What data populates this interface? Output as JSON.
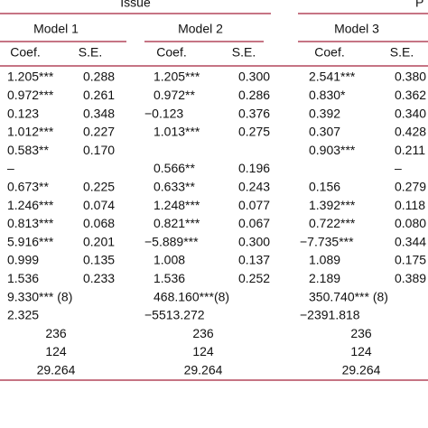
{
  "header": {
    "groups": [
      "Issue",
      "P"
    ],
    "models": [
      "Model 1",
      "Model 2",
      "Model 3"
    ],
    "columns": [
      "Coef.",
      "S.E.",
      "Coef.",
      "S.E.",
      "Coef.",
      "S.E."
    ]
  },
  "table": {
    "rows": [
      [
        "1.205***",
        "0.288",
        "1.205***",
        "0.300",
        "2.541***",
        "0.380"
      ],
      [
        "0.972***",
        "0.261",
        "0.972**",
        "0.286",
        "0.830*",
        "0.362"
      ],
      [
        "0.123",
        "0.348",
        "−0.123",
        "0.376",
        "0.392",
        "0.340"
      ],
      [
        "1.012***",
        "0.227",
        "1.013***",
        "0.275",
        "0.307",
        "0.428"
      ],
      [
        "0.583**",
        "0.170",
        null,
        null,
        "0.903***",
        "0.211"
      ],
      [
        "–",
        null,
        "0.566**",
        "0.196",
        null,
        "–"
      ],
      [
        "0.673**",
        "0.225",
        "0.633**",
        "0.243",
        "0.156",
        "0.279"
      ],
      [
        "1.246***",
        "0.074",
        "1.248***",
        "0.077",
        "1.392***",
        "0.118"
      ],
      [
        "0.813***",
        "0.068",
        "0.821***",
        "0.067",
        "0.722***",
        "0.080"
      ],
      [
        "5.916***",
        "0.201",
        "−5.889***",
        "0.300",
        "−7.735***",
        "0.344"
      ],
      [
        "0.999",
        "0.135",
        "1.008",
        "0.137",
        "1.089",
        "0.175"
      ],
      [
        "1.536",
        "0.233",
        "1.536",
        "0.252",
        "2.189",
        "0.389"
      ],
      [
        "9.330*** (8)",
        null,
        "468.160***(8)",
        null,
        "350.740*** (8)",
        null
      ],
      [
        "2.325",
        null,
        "−5513.272",
        null,
        "−2391.818",
        null
      ]
    ],
    "summary_rows": [
      [
        "236",
        "236",
        "236"
      ],
      [
        "124",
        "124",
        "124"
      ],
      [
        "29.264",
        "29.264",
        "29.264"
      ]
    ]
  }
}
